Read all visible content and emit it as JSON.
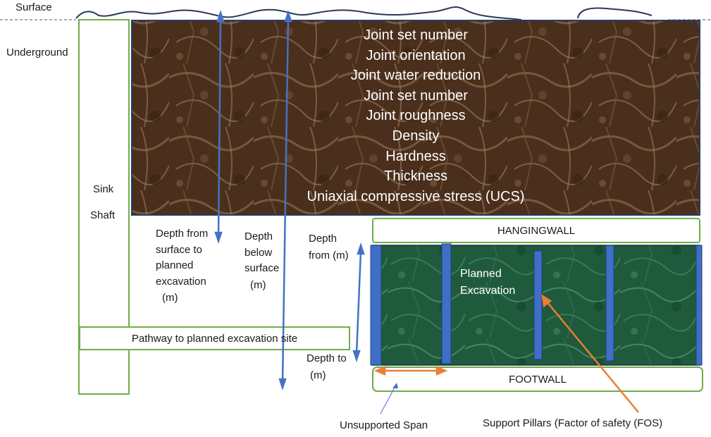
{
  "labels": {
    "surface": "Surface",
    "underground": "Underground",
    "sink": "Sink",
    "shaft": "Shaft",
    "depth_from_surface": [
      "Depth from",
      "surface to",
      "planned",
      "excavation",
      "(m)"
    ],
    "depth_below_surface": [
      "Depth",
      "below",
      "surface",
      "(m)"
    ],
    "depth_from": [
      "Depth",
      "from (m)"
    ],
    "depth_to": [
      "Depth to",
      "(m)"
    ],
    "hangingwall": "HANGINGWALL",
    "footwall": "FOOTWALL",
    "planned_excavation": [
      "Planned",
      "Excavation"
    ],
    "pathway": "Pathway to planned excavation site",
    "unsupported_span": "Unsupported Span",
    "support_pillars": "Support Pillars (Factor of safety (FOS)"
  },
  "rock_properties": [
    "Joint set number",
    "Joint orientation",
    "Joint water reduction",
    "Joint set number",
    "Joint roughness",
    "Density",
    "Hardness",
    "Thickness",
    "Uniaxial compressive stress (UCS)"
  ],
  "colors": {
    "rock_brown": "#5a3b24",
    "ore_green": "#1e5a3c",
    "box_green": "#70ad47",
    "arrow_blue": "#4472c4",
    "arrow_orange": "#ed7d31",
    "pillar_blue": "#3f6fc6"
  }
}
